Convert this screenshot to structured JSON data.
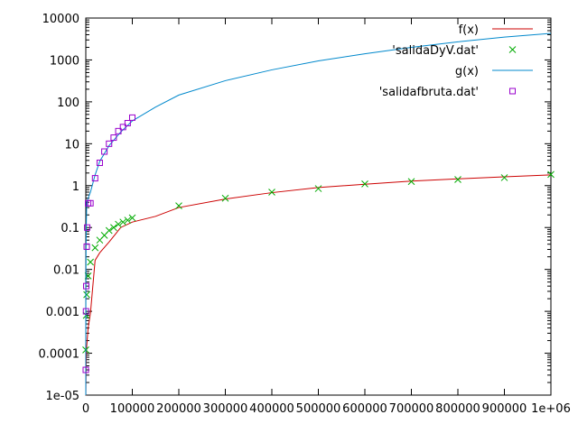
{
  "chart_data": {
    "type": "line",
    "title": "",
    "xlabel": "",
    "ylabel": "",
    "xlim": [
      0,
      1000000
    ],
    "ylim": [
      1e-05,
      10000
    ],
    "y_scale": "log",
    "grid": false,
    "legend_placement": "top-right",
    "x_ticks": [
      {
        "value": 0,
        "label": "0"
      },
      {
        "value": 100000,
        "label": "100000"
      },
      {
        "value": 200000,
        "label": "200000"
      },
      {
        "value": 300000,
        "label": "300000"
      },
      {
        "value": 400000,
        "label": "400000"
      },
      {
        "value": 500000,
        "label": "500000"
      },
      {
        "value": 600000,
        "label": "600000"
      },
      {
        "value": 700000,
        "label": "700000"
      },
      {
        "value": 800000,
        "label": "800000"
      },
      {
        "value": 900000,
        "label": "900000"
      },
      {
        "value": 1000000,
        "label": "1e+06"
      }
    ],
    "y_ticks": [
      {
        "value": 1e-05,
        "label": "1e-05"
      },
      {
        "value": 0.0001,
        "label": "0.0001"
      },
      {
        "value": 0.001,
        "label": "0.001"
      },
      {
        "value": 0.01,
        "label": "0.01"
      },
      {
        "value": 0.1,
        "label": "0.1"
      },
      {
        "value": 1,
        "label": "1"
      },
      {
        "value": 10,
        "label": "10"
      },
      {
        "value": 100,
        "label": "100"
      },
      {
        "value": 1000,
        "label": "1000"
      },
      {
        "value": 10000,
        "label": "10000"
      }
    ],
    "series": [
      {
        "name": "f(x)",
        "kind": "line",
        "color": "#cc0000",
        "x": [
          0,
          100,
          200,
          500,
          1000,
          2000,
          5000,
          10000,
          20000,
          30000,
          50000,
          75000,
          100000,
          150000,
          200000,
          300000,
          400000,
          500000,
          600000,
          700000,
          800000,
          900000,
          1000000
        ],
        "y": [
          0,
          6e-06,
          1.3e-05,
          3e-05,
          7e-05,
          0.00015,
          0.0004,
          0.0009,
          0.0165,
          0.025,
          0.045,
          0.1,
          0.135,
          0.185,
          0.3,
          0.48,
          0.68,
          0.9,
          1.08,
          1.28,
          1.45,
          1.62,
          1.8
        ]
      },
      {
        "name": "'salidaDyV.dat'",
        "kind": "points",
        "marker": "x",
        "color": "#00aa00",
        "x": [
          0,
          1000,
          2000,
          5000,
          10000,
          20000,
          30000,
          40000,
          50000,
          60000,
          70000,
          80000,
          90000,
          100000,
          200000,
          300000,
          400000,
          500000,
          600000,
          700000,
          800000,
          900000,
          1000000
        ],
        "y": [
          0.00012,
          0.0008,
          0.0025,
          0.007,
          0.015,
          0.033,
          0.05,
          0.065,
          0.085,
          0.1,
          0.12,
          0.135,
          0.15,
          0.17,
          0.33,
          0.5,
          0.7,
          0.85,
          1.1,
          1.25,
          1.4,
          1.55,
          1.85
        ]
      },
      {
        "name": "g(x)",
        "kind": "line",
        "color": "#0088cc",
        "x": [
          0,
          50,
          100,
          200,
          500,
          1000,
          2000,
          5000,
          10000,
          20000,
          30000,
          50000,
          75000,
          100000,
          150000,
          200000,
          300000,
          400000,
          500000,
          600000,
          700000,
          800000,
          900000,
          1000000
        ],
        "y": [
          1e-05,
          0.00025,
          0.001,
          0.004,
          0.025,
          0.1,
          0.4,
          0.5,
          0.7,
          1.8,
          3.8,
          9,
          19,
          35,
          75,
          145,
          320,
          580,
          950,
          1400,
          2000,
          2700,
          3500,
          4300
        ]
      },
      {
        "name": "'salidafbruta.dat'",
        "kind": "points",
        "marker": "square",
        "color": "#9900cc",
        "x": [
          0,
          500,
          1000,
          2000,
          3000,
          5000,
          10000,
          20000,
          30000,
          40000,
          50000,
          60000,
          70000,
          80000,
          90000,
          100000
        ],
        "y": [
          4e-05,
          0.001,
          0.004,
          0.035,
          0.1,
          0.38,
          0.38,
          1.5,
          3.5,
          6.5,
          10,
          14,
          20,
          25,
          31,
          42
        ]
      }
    ]
  }
}
